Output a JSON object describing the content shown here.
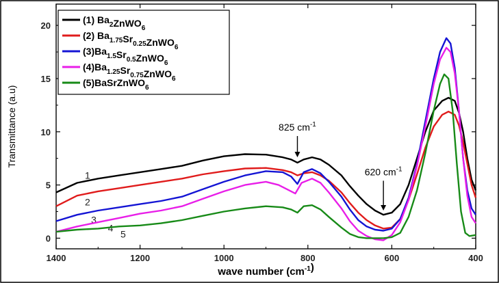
{
  "chart_data": {
    "type": "line",
    "xlabel_main": "wave number (cm",
    "xlabel_sup": "-1",
    "xlabel_end": ")",
    "ylabel": "Transmittance (a.u)",
    "xlim": [
      1400,
      400
    ],
    "ylim": [
      -1,
      22
    ],
    "x_ticks": [
      1400,
      1200,
      1000,
      800,
      600,
      400
    ],
    "y_ticks": [
      0,
      5,
      10,
      15,
      20
    ],
    "grid": false,
    "legend_position": "top-left",
    "series": [
      {
        "name": "(1) Ba2ZnWO6",
        "legend": [
          [
            "(1) Ba",
            ""
          ],
          [
            "2",
            "sub"
          ],
          [
            "ZnWO",
            ""
          ],
          [
            "6",
            "sub"
          ]
        ],
        "color": "#000000",
        "curve_label": "1",
        "points": [
          [
            1400,
            4.3
          ],
          [
            1350,
            5.2
          ],
          [
            1300,
            5.6
          ],
          [
            1250,
            5.9
          ],
          [
            1200,
            6.2
          ],
          [
            1150,
            6.5
          ],
          [
            1100,
            6.8
          ],
          [
            1050,
            7.3
          ],
          [
            1000,
            7.7
          ],
          [
            950,
            7.9
          ],
          [
            900,
            7.85
          ],
          [
            860,
            7.6
          ],
          [
            840,
            7.4
          ],
          [
            825,
            7.1
          ],
          [
            810,
            7.4
          ],
          [
            790,
            7.6
          ],
          [
            770,
            7.4
          ],
          [
            750,
            6.9
          ],
          [
            720,
            5.9
          ],
          [
            700,
            4.9
          ],
          [
            680,
            4.0
          ],
          [
            660,
            3.2
          ],
          [
            640,
            2.6
          ],
          [
            620,
            2.2
          ],
          [
            600,
            2.4
          ],
          [
            580,
            3.2
          ],
          [
            560,
            5.0
          ],
          [
            540,
            7.5
          ],
          [
            520,
            10.0
          ],
          [
            500,
            12.0
          ],
          [
            480,
            12.9
          ],
          [
            465,
            13.2
          ],
          [
            450,
            12.9
          ],
          [
            440,
            11.8
          ],
          [
            430,
            10.0
          ],
          [
            420,
            7.5
          ],
          [
            410,
            5.5
          ],
          [
            400,
            4.5
          ]
        ]
      },
      {
        "name": "(2) Ba1.75Sr0.25ZnWO6",
        "legend": [
          [
            "(2) Ba",
            ""
          ],
          [
            "1.75",
            "sub"
          ],
          [
            "Sr",
            ""
          ],
          [
            "0.25",
            "sub"
          ],
          [
            "ZnWO",
            ""
          ],
          [
            "6",
            "sub"
          ]
        ],
        "color": "#e01b1b",
        "curve_label": "2",
        "points": [
          [
            1400,
            3.0
          ],
          [
            1350,
            4.0
          ],
          [
            1300,
            4.4
          ],
          [
            1250,
            4.7
          ],
          [
            1200,
            5.0
          ],
          [
            1150,
            5.3
          ],
          [
            1100,
            5.6
          ],
          [
            1050,
            6.0
          ],
          [
            1000,
            6.3
          ],
          [
            950,
            6.55
          ],
          [
            900,
            6.6
          ],
          [
            860,
            6.4
          ],
          [
            840,
            6.2
          ],
          [
            825,
            5.9
          ],
          [
            810,
            6.1
          ],
          [
            790,
            6.2
          ],
          [
            770,
            5.9
          ],
          [
            750,
            5.4
          ],
          [
            720,
            4.3
          ],
          [
            700,
            3.3
          ],
          [
            680,
            2.4
          ],
          [
            660,
            1.7
          ],
          [
            640,
            1.2
          ],
          [
            620,
            0.9
          ],
          [
            600,
            1.0
          ],
          [
            580,
            1.8
          ],
          [
            560,
            3.6
          ],
          [
            540,
            6.0
          ],
          [
            520,
            8.5
          ],
          [
            500,
            10.5
          ],
          [
            480,
            11.6
          ],
          [
            465,
            11.9
          ],
          [
            450,
            11.6
          ],
          [
            440,
            10.6
          ],
          [
            430,
            9.0
          ],
          [
            420,
            7.0
          ],
          [
            410,
            5.0
          ],
          [
            400,
            3.8
          ]
        ]
      },
      {
        "name": "(3)Ba1.5Sr0.5ZnWO6",
        "legend": [
          [
            "(3)Ba",
            ""
          ],
          [
            "1.5",
            "sub"
          ],
          [
            "Sr",
            ""
          ],
          [
            "0.5",
            "sub"
          ],
          [
            "ZnWO",
            ""
          ],
          [
            "6",
            "sub"
          ]
        ],
        "color": "#1414d4",
        "curve_label": "3",
        "points": [
          [
            1400,
            1.6
          ],
          [
            1350,
            2.2
          ],
          [
            1300,
            2.6
          ],
          [
            1250,
            2.9
          ],
          [
            1200,
            3.2
          ],
          [
            1150,
            3.5
          ],
          [
            1100,
            3.9
          ],
          [
            1050,
            4.6
          ],
          [
            1000,
            5.3
          ],
          [
            950,
            5.9
          ],
          [
            900,
            6.3
          ],
          [
            860,
            6.2
          ],
          [
            840,
            5.8
          ],
          [
            825,
            5.1
          ],
          [
            810,
            6.2
          ],
          [
            790,
            6.5
          ],
          [
            770,
            6.1
          ],
          [
            750,
            5.3
          ],
          [
            720,
            3.9
          ],
          [
            700,
            2.7
          ],
          [
            680,
            1.7
          ],
          [
            660,
            1.1
          ],
          [
            640,
            0.8
          ],
          [
            620,
            0.7
          ],
          [
            600,
            0.9
          ],
          [
            580,
            1.8
          ],
          [
            560,
            3.8
          ],
          [
            540,
            7.0
          ],
          [
            520,
            11.0
          ],
          [
            500,
            15.0
          ],
          [
            485,
            17.5
          ],
          [
            470,
            18.8
          ],
          [
            460,
            18.3
          ],
          [
            450,
            16.0
          ],
          [
            440,
            12.0
          ],
          [
            430,
            7.5
          ],
          [
            420,
            4.5
          ],
          [
            410,
            2.8
          ],
          [
            400,
            2.2
          ]
        ]
      },
      {
        "name": "(4)Ba1.25Sr0.75ZnWO6",
        "legend": [
          [
            "(4)Ba",
            ""
          ],
          [
            "1.25",
            "sub"
          ],
          [
            "Sr",
            ""
          ],
          [
            "0.75",
            "sub"
          ],
          [
            "ZnWO",
            ""
          ],
          [
            "6",
            "sub"
          ]
        ],
        "color": "#e81ee8",
        "curve_label": "4",
        "points": [
          [
            1400,
            0.6
          ],
          [
            1350,
            1.1
          ],
          [
            1300,
            1.5
          ],
          [
            1250,
            1.9
          ],
          [
            1200,
            2.3
          ],
          [
            1150,
            2.6
          ],
          [
            1100,
            3.0
          ],
          [
            1050,
            3.7
          ],
          [
            1000,
            4.4
          ],
          [
            950,
            5.0
          ],
          [
            900,
            5.3
          ],
          [
            870,
            5.0
          ],
          [
            850,
            4.6
          ],
          [
            830,
            4.2
          ],
          [
            815,
            5.2
          ],
          [
            790,
            5.6
          ],
          [
            770,
            5.2
          ],
          [
            750,
            4.3
          ],
          [
            720,
            2.8
          ],
          [
            700,
            1.6
          ],
          [
            680,
            0.7
          ],
          [
            660,
            0.2
          ],
          [
            640,
            -0.1
          ],
          [
            620,
            -0.2
          ],
          [
            600,
            0.3
          ],
          [
            580,
            1.5
          ],
          [
            560,
            3.6
          ],
          [
            540,
            6.8
          ],
          [
            520,
            10.5
          ],
          [
            500,
            14.5
          ],
          [
            485,
            16.8
          ],
          [
            470,
            17.9
          ],
          [
            460,
            17.5
          ],
          [
            450,
            15.5
          ],
          [
            440,
            12.0
          ],
          [
            430,
            7.5
          ],
          [
            420,
            4.0
          ],
          [
            410,
            2.0
          ],
          [
            400,
            1.4
          ]
        ]
      },
      {
        "name": "(5)BaSrZnWO6",
        "legend": [
          [
            "(5)BaSrZnWO",
            ""
          ],
          [
            "6",
            "sub"
          ]
        ],
        "color": "#178a17",
        "curve_label": "5",
        "points": [
          [
            1400,
            0.6
          ],
          [
            1350,
            0.8
          ],
          [
            1300,
            0.9
          ],
          [
            1250,
            1.1
          ],
          [
            1200,
            1.2
          ],
          [
            1150,
            1.4
          ],
          [
            1100,
            1.7
          ],
          [
            1050,
            2.1
          ],
          [
            1000,
            2.5
          ],
          [
            950,
            2.8
          ],
          [
            900,
            3.0
          ],
          [
            860,
            2.9
          ],
          [
            840,
            2.7
          ],
          [
            825,
            2.4
          ],
          [
            810,
            3.0
          ],
          [
            790,
            3.1
          ],
          [
            770,
            2.7
          ],
          [
            750,
            2.0
          ],
          [
            720,
            1.0
          ],
          [
            700,
            0.4
          ],
          [
            680,
            0.1
          ],
          [
            660,
            0.0
          ],
          [
            640,
            0.0
          ],
          [
            620,
            0.0
          ],
          [
            600,
            0.1
          ],
          [
            580,
            0.5
          ],
          [
            560,
            2.0
          ],
          [
            540,
            4.5
          ],
          [
            520,
            8.0
          ],
          [
            500,
            12.0
          ],
          [
            485,
            14.5
          ],
          [
            475,
            15.4
          ],
          [
            465,
            15.0
          ],
          [
            455,
            12.0
          ],
          [
            445,
            7.0
          ],
          [
            435,
            2.5
          ],
          [
            425,
            0.5
          ],
          [
            415,
            0.2
          ],
          [
            400,
            0.3
          ]
        ]
      }
    ],
    "annotations": [
      {
        "text_main": "825 cm",
        "text_sup": "-1",
        "x": 825,
        "arrow_from_y": 9.6,
        "arrow_to_y": 7.6
      },
      {
        "text_main": "620 cm",
        "text_sup": "-1",
        "x": 620,
        "arrow_from_y": 5.4,
        "arrow_to_y": 2.6
      }
    ]
  }
}
